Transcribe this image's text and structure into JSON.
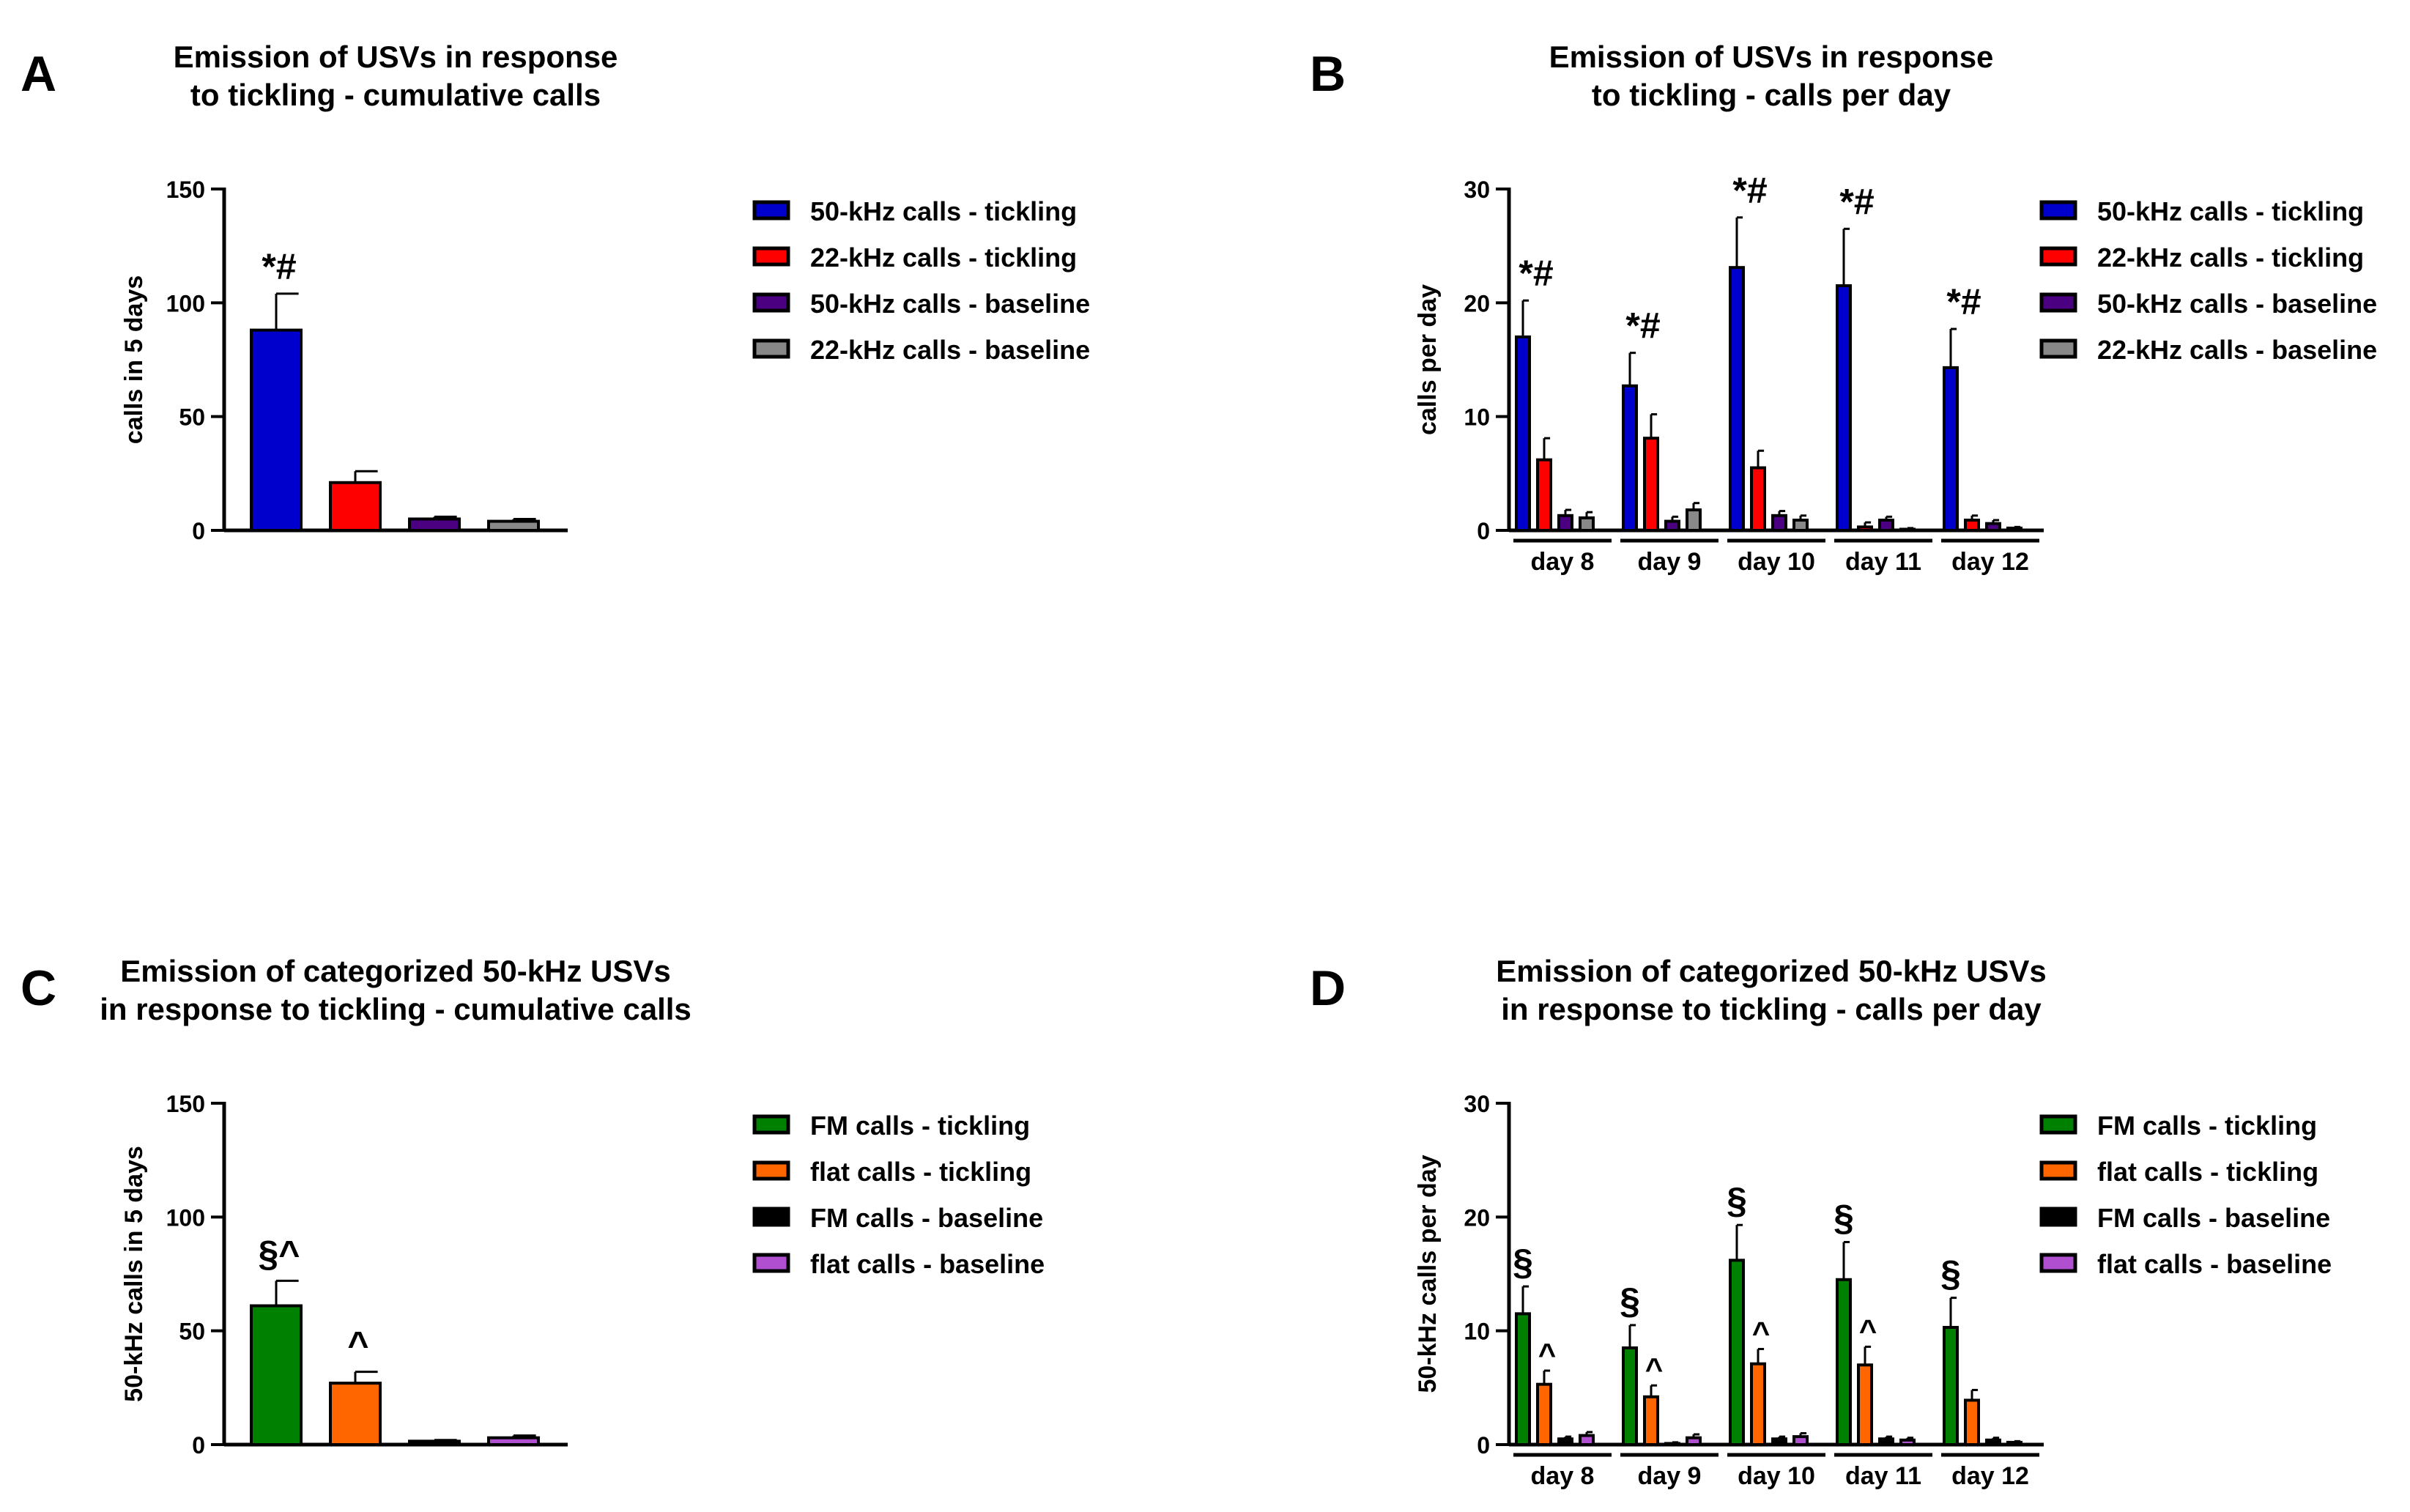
{
  "panels": [
    {
      "letter": "A",
      "title_lines": [
        "Emission of USVs in response",
        "to tickling - cumulative calls"
      ],
      "ylabel": "calls in 5 days",
      "ylim": [
        0,
        150
      ],
      "yticks": [
        "0",
        "50",
        "100",
        "150"
      ],
      "legend": [
        {
          "label": "50-kHz calls - tickling",
          "color": "#0000cc"
        },
        {
          "label": "22-kHz calls - tickling",
          "color": "#ff0000"
        },
        {
          "label": "50-kHz calls - baseline",
          "color": "#4b0082"
        },
        {
          "label": "22-kHz calls - baseline",
          "color": "#888888"
        }
      ]
    },
    {
      "letter": "B",
      "title_lines": [
        "Emission of USVs in response",
        "to tickling - calls per day"
      ],
      "ylabel": "calls per day",
      "ylim": [
        0,
        30
      ],
      "yticks": [
        "0",
        "10",
        "20",
        "30"
      ],
      "legend": [
        {
          "label": "50-kHz calls - tickling",
          "color": "#0000cc"
        },
        {
          "label": "22-kHz calls - tickling",
          "color": "#ff0000"
        },
        {
          "label": "50-kHz calls - baseline",
          "color": "#4b0082"
        },
        {
          "label": "22-kHz calls - baseline",
          "color": "#888888"
        }
      ]
    },
    {
      "letter": "C",
      "title_lines": [
        "Emission of categorized 50-kHz USVs",
        "in response to tickling - cumulative calls"
      ],
      "ylabel": "50-kHz calls in 5 days",
      "ylim": [
        0,
        150
      ],
      "yticks": [
        "0",
        "50",
        "100",
        "150"
      ],
      "legend": [
        {
          "label": "FM calls - tickling",
          "color": "#008000"
        },
        {
          "label": "flat calls - tickling",
          "color": "#ff6600"
        },
        {
          "label": "FM calls - baseline",
          "color": "#000000"
        },
        {
          "label": "flat calls - baseline",
          "color": "#b050d0"
        }
      ]
    },
    {
      "letter": "D",
      "title_lines": [
        "Emission of categorized 50-kHz USVs",
        "in response to tickling - calls per day"
      ],
      "ylabel": "50-kHz calls per day",
      "ylim": [
        0,
        30
      ],
      "yticks": [
        "0",
        "10",
        "20",
        "30"
      ],
      "legend": [
        {
          "label": "FM calls - tickling",
          "color": "#008000"
        },
        {
          "label": "flat calls - tickling",
          "color": "#ff6600"
        },
        {
          "label": "FM calls - baseline",
          "color": "#000000"
        },
        {
          "label": "flat calls - baseline",
          "color": "#b050d0"
        }
      ]
    }
  ],
  "chart_data": [
    {
      "panel": "A",
      "type": "bar",
      "title": "Emission of USVs in response to tickling - cumulative calls",
      "xlabel": "",
      "ylabel": "calls in 5 days",
      "ylim": [
        0,
        150
      ],
      "categories": [
        "50-kHz calls - tickling",
        "22-kHz calls - tickling",
        "50-kHz calls - baseline",
        "22-kHz calls - baseline"
      ],
      "values": [
        88,
        21,
        5,
        4
      ],
      "errors": [
        16,
        5,
        1,
        1
      ],
      "colors": [
        "#0000cc",
        "#ff0000",
        "#4b0082",
        "#888888"
      ],
      "annotations": [
        "*#",
        "",
        "",
        ""
      ]
    },
    {
      "panel": "B",
      "type": "bar",
      "title": "Emission of USVs in response to tickling - calls per day",
      "xlabel": "",
      "ylabel": "calls per day",
      "ylim": [
        0,
        30
      ],
      "categories": [
        "day 8",
        "day 9",
        "day 10",
        "day 11",
        "day 12"
      ],
      "series": [
        {
          "name": "50-kHz calls - tickling",
          "color": "#0000cc",
          "values": [
            17,
            12.7,
            23.1,
            21.5,
            14.3
          ],
          "errors": [
            3.2,
            2.9,
            4.4,
            5.0,
            3.4
          ]
        },
        {
          "name": "22-kHz calls - tickling",
          "color": "#ff0000",
          "values": [
            6.2,
            8.1,
            5.5,
            0.3,
            0.9
          ],
          "errors": [
            1.9,
            2.1,
            1.5,
            0.4,
            0.4
          ]
        },
        {
          "name": "50-kHz calls - baseline",
          "color": "#4b0082",
          "values": [
            1.3,
            0.8,
            1.3,
            0.9,
            0.6
          ],
          "errors": [
            0.5,
            0.4,
            0.4,
            0.3,
            0.3
          ]
        },
        {
          "name": "22-kHz calls - baseline",
          "color": "#888888",
          "values": [
            1.1,
            1.8,
            0.9,
            0.1,
            0.2
          ],
          "errors": [
            0.5,
            0.6,
            0.4,
            0.1,
            0.1
          ]
        }
      ],
      "annotations": [
        "*#",
        "*#",
        "*#",
        "*#",
        "*#"
      ]
    },
    {
      "panel": "C",
      "type": "bar",
      "title": "Emission of categorized 50-kHz USVs in response to tickling - cumulative calls",
      "xlabel": "",
      "ylabel": "50-kHz calls in 5 days",
      "ylim": [
        0,
        150
      ],
      "categories": [
        "FM calls - tickling",
        "flat calls - tickling",
        "FM calls - baseline",
        "flat calls - baseline"
      ],
      "values": [
        61,
        27,
        1.5,
        3
      ],
      "errors": [
        11,
        5,
        0.5,
        1
      ],
      "colors": [
        "#008000",
        "#ff6600",
        "#000000",
        "#b050d0"
      ],
      "annotations": [
        "§^",
        "^",
        "",
        ""
      ]
    },
    {
      "panel": "D",
      "type": "bar",
      "title": "Emission of categorized 50-kHz USVs in response to tickling - calls per day",
      "xlabel": "",
      "ylabel": "50-kHz calls per day",
      "ylim": [
        0,
        30
      ],
      "categories": [
        "day 8",
        "day 9",
        "day 10",
        "day 11",
        "day 12"
      ],
      "series": [
        {
          "name": "FM calls - tickling",
          "color": "#008000",
          "values": [
            11.5,
            8.5,
            16.2,
            14.5,
            10.3
          ],
          "errors": [
            2.4,
            2.0,
            3.1,
            3.3,
            2.6
          ]
        },
        {
          "name": "flat calls - tickling",
          "color": "#ff6600",
          "values": [
            5.3,
            4.2,
            7.1,
            7.0,
            3.9
          ],
          "errors": [
            1.2,
            1.0,
            1.3,
            1.6,
            0.9
          ]
        },
        {
          "name": "FM calls - baseline",
          "color": "#000000",
          "values": [
            0.5,
            0.1,
            0.5,
            0.5,
            0.4
          ],
          "errors": [
            0.2,
            0.1,
            0.2,
            0.2,
            0.2
          ]
        },
        {
          "name": "flat calls - baseline",
          "color": "#b050d0",
          "values": [
            0.8,
            0.6,
            0.7,
            0.4,
            0.2
          ],
          "errors": [
            0.3,
            0.3,
            0.3,
            0.2,
            0.1
          ]
        }
      ],
      "annotations_fm": [
        "§",
        "§",
        "§",
        "§",
        "§"
      ],
      "annotations_flat": [
        "^",
        "^",
        "^",
        "^",
        ""
      ]
    }
  ]
}
